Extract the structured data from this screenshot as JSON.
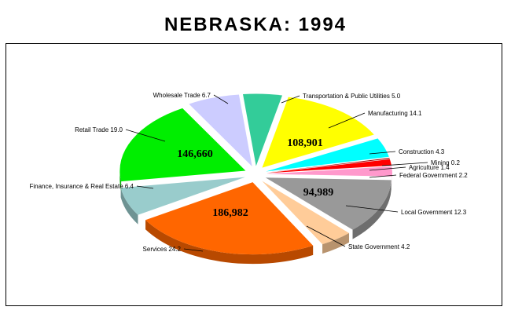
{
  "chart_data": {
    "type": "pie",
    "title": "NEBRASKA:  1994",
    "slices": [
      {
        "label": "Transportation & Public Utilities",
        "value": 5.0,
        "value_text": "5.0",
        "color": "#33cc99",
        "exploded": true
      },
      {
        "label": "Manufacturing",
        "value": 14.1,
        "value_text": "14.1",
        "color": "#ffff00",
        "big_value": "108,901",
        "exploded": true
      },
      {
        "label": "Construction",
        "value": 4.3,
        "value_text": "4.3",
        "color": "#00ffff",
        "exploded": true
      },
      {
        "label": "Mining",
        "value": 0.2,
        "value_text": "0.2",
        "color": "#990000",
        "exploded": true
      },
      {
        "label": "Agriculture",
        "value": 1.4,
        "value_text": "1.4",
        "color": "#ff0000",
        "exploded": true
      },
      {
        "label": "Federal Government",
        "value": 2.2,
        "value_text": "2.2",
        "color": "#ff99cc",
        "exploded": true
      },
      {
        "label": "Local Government",
        "value": 12.3,
        "value_text": "12.3",
        "color": "#999999",
        "big_value": "94,989",
        "exploded": true
      },
      {
        "label": "State Government",
        "value": 4.2,
        "value_text": "4.2",
        "color": "#ffcc99",
        "exploded": true
      },
      {
        "label": "Services",
        "value": 24.2,
        "value_text": "24.2",
        "color": "#ff6600",
        "big_value": "186,982",
        "exploded": true
      },
      {
        "label": "Finance, Insurance & Real Estate",
        "value": 6.4,
        "value_text": "6.4",
        "color": "#99cccc",
        "exploded": true
      },
      {
        "label": "Retail Trade",
        "value": 19.0,
        "value_text": "19.0",
        "color": "#00ee00",
        "big_value": "146,660",
        "exploded": true
      },
      {
        "label": "Wholesale Trade",
        "value": 6.7,
        "value_text": "6.7",
        "color": "#ccccff",
        "exploded": true
      }
    ]
  }
}
